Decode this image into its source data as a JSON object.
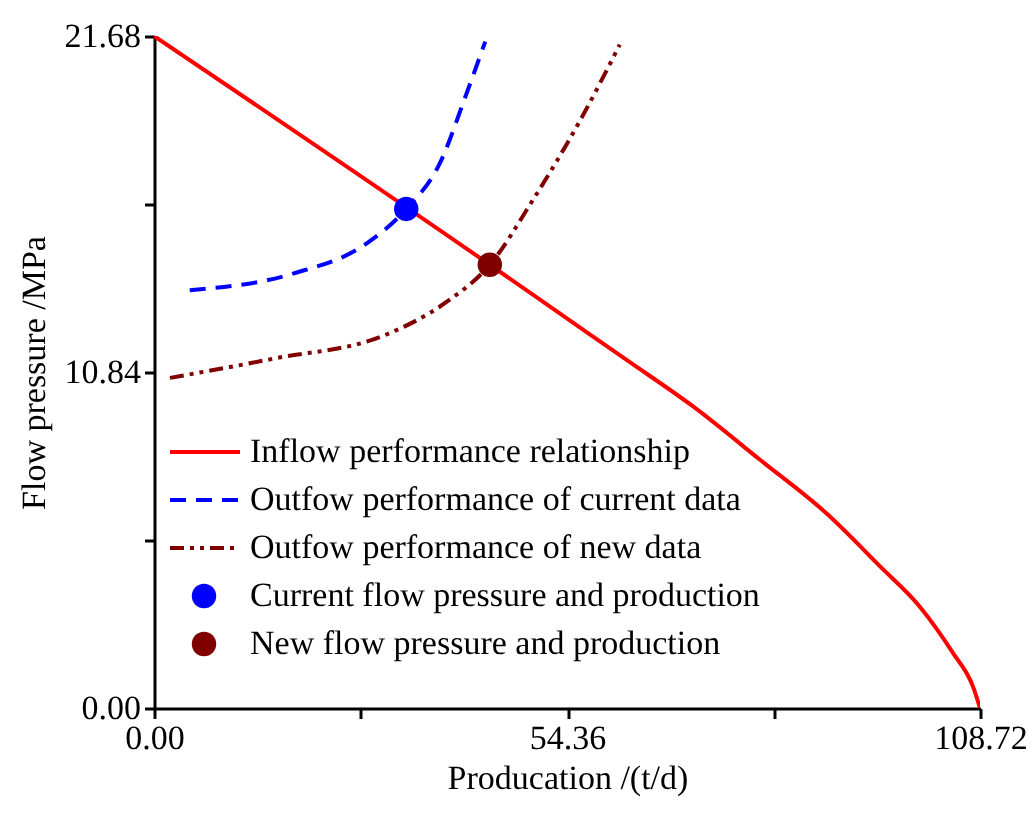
{
  "chart_data": {
    "type": "line",
    "xlabel": "Producation /(t/d)",
    "ylabel": "Flow pressure /MPa",
    "xlim": [
      0,
      108.72
    ],
    "ylim": [
      0,
      21.68
    ],
    "xticks": [
      {
        "value": 0,
        "label": "0.00"
      },
      {
        "value": 27.18,
        "label": null
      },
      54.36,
      {
        "value": 81.54,
        "label": null
      },
      108.72
    ],
    "yticks": [
      {
        "value": 0,
        "label": "0.00"
      },
      {
        "value": 5.42,
        "label": null
      },
      10.84,
      {
        "value": 16.26,
        "label": null
      },
      21.68
    ],
    "grid": false,
    "legend": "bottom left",
    "series": [
      {
        "name": "Inflow performance relationship",
        "line_style": "solid",
        "color": "#ff0000",
        "x": [
          0,
          44.2,
          53.4,
          62.2,
          71.0,
          79.8,
          88.5,
          95.6,
          100.8,
          105.2,
          107.8,
          108.72
        ],
        "values": [
          21.68,
          14.3,
          12.73,
          11.23,
          9.72,
          8.0,
          6.28,
          4.56,
          3.27,
          1.76,
          0.69,
          0
        ]
      },
      {
        "name": "Outfow performance of current data",
        "line_style": "dashed",
        "color": "#0000ff",
        "x": [
          4.7,
          18.4,
          28.0,
          33.2,
          37.6,
          41.1,
          43.6
        ],
        "values": [
          13.48,
          14.02,
          14.99,
          16.1,
          17.56,
          19.8,
          21.5
        ]
      },
      {
        "name": "Outfow performance of new data",
        "line_style": "dotted",
        "color": "#800000",
        "x": [
          2.1,
          15.7,
          30.6,
          38.5,
          44.2,
          49.9,
          56.1,
          61.3
        ],
        "values": [
          10.65,
          11.27,
          12.05,
          13.1,
          14.3,
          16.4,
          18.96,
          21.4
        ]
      },
      {
        "name": "Current flow pressure and production",
        "type": "scatter",
        "marker": "circle",
        "color": "#0000ff",
        "x": [
          33.2
        ],
        "values": [
          16.1
        ]
      },
      {
        "name": "New flow pressure and production",
        "type": "scatter",
        "marker": "circle",
        "color": "#800000",
        "x": [
          44.2
        ],
        "values": [
          14.3
        ]
      }
    ]
  }
}
